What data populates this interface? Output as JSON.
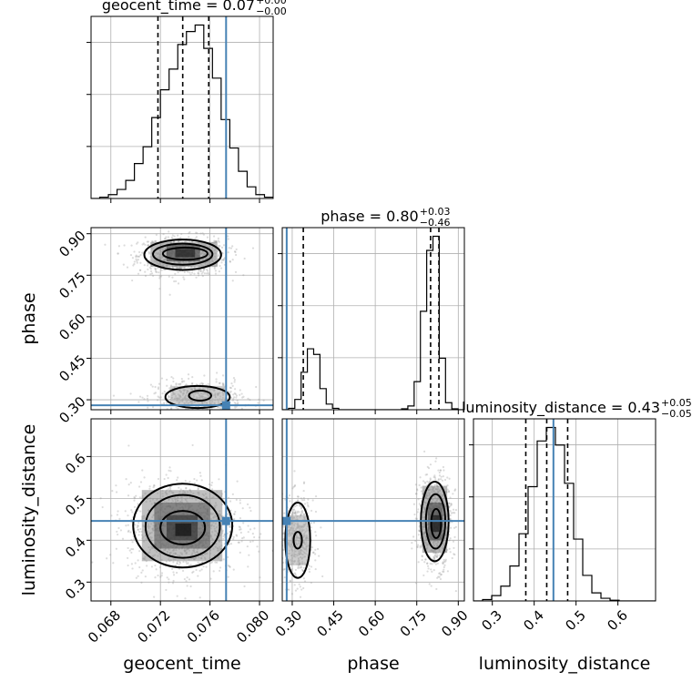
{
  "chart_data": {
    "type": "corner",
    "parameters": [
      "geocent_time",
      "phase",
      "luminosity_distance"
    ],
    "axis_labels": {
      "geocent_time": "geocent_time",
      "phase": "phase",
      "luminosity_distance": "luminosity_distance"
    },
    "ranges": {
      "geocent_time": [
        0.0664,
        0.0811
      ],
      "phase": [
        0.264,
        0.922
      ],
      "luminosity_distance": [
        0.255,
        0.69
      ]
    },
    "ticks": {
      "geocent_time": [
        "0.068",
        "0.072",
        "0.076",
        "0.080"
      ],
      "phase": [
        "0.30",
        "0.45",
        "0.60",
        "0.75",
        "0.90"
      ],
      "luminosity_distance": [
        "0.3",
        "0.4",
        "0.5",
        "0.6"
      ]
    },
    "truth": {
      "geocent_time": 0.0773,
      "phase": 0.28,
      "luminosity_distance": 0.446
    },
    "titles": {
      "geocent_time": {
        "text": "geocent_time = 0.07",
        "plus": "+0.00",
        "minus": "−0.00"
      },
      "phase": {
        "text": "phase = 0.80",
        "plus": "+0.03",
        "minus": "−0.46"
      },
      "luminosity_distance": {
        "text": "luminosity_distance = 0.43",
        "plus": "+0.05",
        "minus": "−0.05"
      }
    },
    "quantiles": {
      "geocent_time": [
        0.0718,
        0.0738,
        0.0759
      ],
      "phase": [
        0.34,
        0.8,
        0.83
      ],
      "luminosity_distance": [
        0.38,
        0.43,
        0.48
      ]
    },
    "histograms": {
      "geocent_time": {
        "start": 0.0664,
        "end": 0.0811,
        "counts": [
          0,
          2,
          6,
          14,
          28,
          54,
          80,
          125,
          168,
          200,
          238,
          258,
          268,
          232,
          186,
          122,
          78,
          42,
          18,
          6,
          2
        ]
      },
      "phase": {
        "start": 0.264,
        "end": 0.922,
        "counts": [
          0,
          3,
          22,
          80,
          130,
          118,
          45,
          12,
          3,
          0,
          0,
          0,
          0,
          0,
          0,
          0,
          0,
          0,
          0,
          2,
          8,
          60,
          210,
          340,
          370,
          110,
          15,
          2,
          0
        ]
      },
      "luminosity_distance": {
        "start": 0.255,
        "end": 0.69,
        "counts": [
          0,
          2,
          8,
          22,
          52,
          100,
          170,
          238,
          258,
          232,
          175,
          92,
          38,
          12,
          4,
          1,
          0,
          0,
          0,
          0
        ]
      }
    },
    "samples_2d": [
      {
        "x": "geocent_time",
        "y": "phase",
        "blobs": [
          {
            "cx": 0.0738,
            "cy": 0.82,
            "sx": 0.0018,
            "sy": 0.035,
            "n": 850
          },
          {
            "cx": 0.075,
            "cy": 0.31,
            "sx": 0.0018,
            "sy": 0.03,
            "n": 520
          }
        ]
      },
      {
        "x": "geocent_time",
        "y": "luminosity_distance",
        "blobs": [
          {
            "cx": 0.0738,
            "cy": 0.43,
            "sx": 0.0022,
            "sy": 0.055,
            "n": 1300
          }
        ]
      },
      {
        "x": "phase",
        "y": "luminosity_distance",
        "blobs": [
          {
            "cx": 0.32,
            "cy": 0.4,
            "sx": 0.028,
            "sy": 0.05,
            "n": 550
          },
          {
            "cx": 0.815,
            "cy": 0.445,
            "sx": 0.03,
            "sy": 0.055,
            "n": 850
          }
        ]
      }
    ],
    "contours_2d": [
      {
        "x": "geocent_time",
        "y": "phase",
        "levels": [
          {
            "cx": 0.0738,
            "cy": 0.824,
            "rx": 0.0031,
            "ry": 0.055
          },
          {
            "cx": 0.0738,
            "cy": 0.826,
            "rx": 0.0024,
            "ry": 0.038
          },
          {
            "cx": 0.074,
            "cy": 0.828,
            "rx": 0.0018,
            "ry": 0.022
          },
          {
            "cx": 0.075,
            "cy": 0.31,
            "rx": 0.0026,
            "ry": 0.04
          },
          {
            "cx": 0.0752,
            "cy": 0.315,
            "rx": 0.0009,
            "ry": 0.018
          }
        ]
      },
      {
        "x": "geocent_time",
        "y": "luminosity_distance",
        "levels": [
          {
            "cx": 0.0738,
            "cy": 0.435,
            "rx": 0.004,
            "ry": 0.1
          },
          {
            "cx": 0.0738,
            "cy": 0.433,
            "rx": 0.003,
            "ry": 0.075
          },
          {
            "cx": 0.0738,
            "cy": 0.43,
            "rx": 0.0018,
            "ry": 0.04
          }
        ]
      },
      {
        "x": "phase",
        "y": "luminosity_distance",
        "levels": [
          {
            "cx": 0.32,
            "cy": 0.4,
            "rx": 0.045,
            "ry": 0.09
          },
          {
            "cx": 0.32,
            "cy": 0.4,
            "rx": 0.015,
            "ry": 0.02
          },
          {
            "cx": 0.815,
            "cy": 0.445,
            "rx": 0.05,
            "ry": 0.095
          },
          {
            "cx": 0.818,
            "cy": 0.445,
            "rx": 0.035,
            "ry": 0.065
          },
          {
            "cx": 0.82,
            "cy": 0.44,
            "rx": 0.018,
            "ry": 0.035
          }
        ]
      }
    ],
    "density_cells": [
      {
        "x": "geocent_time",
        "y": "phase",
        "cells": [
          {
            "x0": 0.0712,
            "x1": 0.0766,
            "y0": 0.78,
            "y1": 0.87,
            "s": 0.45
          },
          {
            "x0": 0.0725,
            "x1": 0.0752,
            "y0": 0.8,
            "y1": 0.86,
            "s": 0.75
          },
          {
            "x0": 0.0732,
            "x1": 0.0748,
            "y0": 0.815,
            "y1": 0.845,
            "s": 0.95
          },
          {
            "x0": 0.0728,
            "x1": 0.0772,
            "y0": 0.28,
            "y1": 0.35,
            "s": 0.3
          }
        ]
      },
      {
        "x": "geocent_time",
        "y": "luminosity_distance",
        "cells": [
          {
            "x0": 0.0705,
            "x1": 0.077,
            "y0": 0.35,
            "y1": 0.52,
            "s": 0.4
          },
          {
            "x0": 0.0715,
            "x1": 0.076,
            "y0": 0.38,
            "y1": 0.49,
            "s": 0.65
          },
          {
            "x0": 0.0725,
            "x1": 0.075,
            "y0": 0.4,
            "y1": 0.46,
            "s": 0.85
          },
          {
            "x0": 0.0732,
            "x1": 0.0745,
            "y0": 0.41,
            "y1": 0.44,
            "s": 1.0
          }
        ]
      },
      {
        "x": "phase",
        "y": "luminosity_distance",
        "cells": [
          {
            "x0": 0.28,
            "x1": 0.36,
            "y0": 0.34,
            "y1": 0.46,
            "s": 0.3
          },
          {
            "x0": 0.77,
            "x1": 0.86,
            "y0": 0.37,
            "y1": 0.53,
            "s": 0.45
          },
          {
            "x0": 0.79,
            "x1": 0.845,
            "y0": 0.4,
            "y1": 0.49,
            "s": 0.75
          },
          {
            "x0": 0.805,
            "x1": 0.835,
            "y0": 0.42,
            "y1": 0.46,
            "s": 1.0
          }
        ]
      }
    ]
  }
}
